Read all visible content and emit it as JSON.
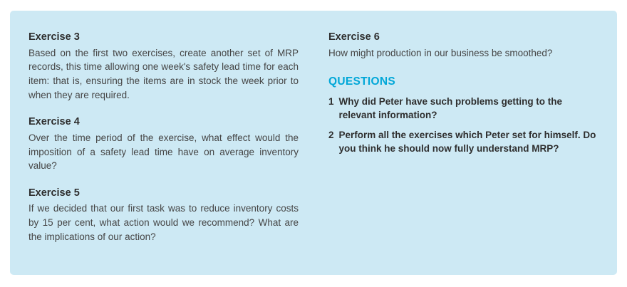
{
  "panel": {
    "background_color": "#cde9f4",
    "accent_color": "#00a7d8"
  },
  "left_column": {
    "sections": [
      {
        "heading": "Exercise 3",
        "body": "Based on the first two exercises, create another set of MRP records, this time allowing one week's safety lead time for each item: that is, ensuring the items are in stock the week prior to when they are required."
      },
      {
        "heading": "Exercise 4",
        "body": "Over the time period of the exercise, what effect would the imposition of a safety lead time have on average inventory value?"
      },
      {
        "heading": "Exercise 5",
        "body": "If we decided that our first task was to reduce inventory costs by 15 per cent, what action would we recommend? What are the implications of our action?"
      }
    ]
  },
  "right_column": {
    "exercise": {
      "heading": "Exercise 6",
      "body": "How might production in our business be smoothed?"
    },
    "questions": {
      "heading": "QUESTIONS",
      "items": [
        {
          "number": "1",
          "text": "Why did Peter have such problems getting to the relevant information?"
        },
        {
          "number": "2",
          "text": "Perform all the exercises which Peter set for himself. Do you think he should now fully understand MRP?"
        }
      ]
    }
  }
}
